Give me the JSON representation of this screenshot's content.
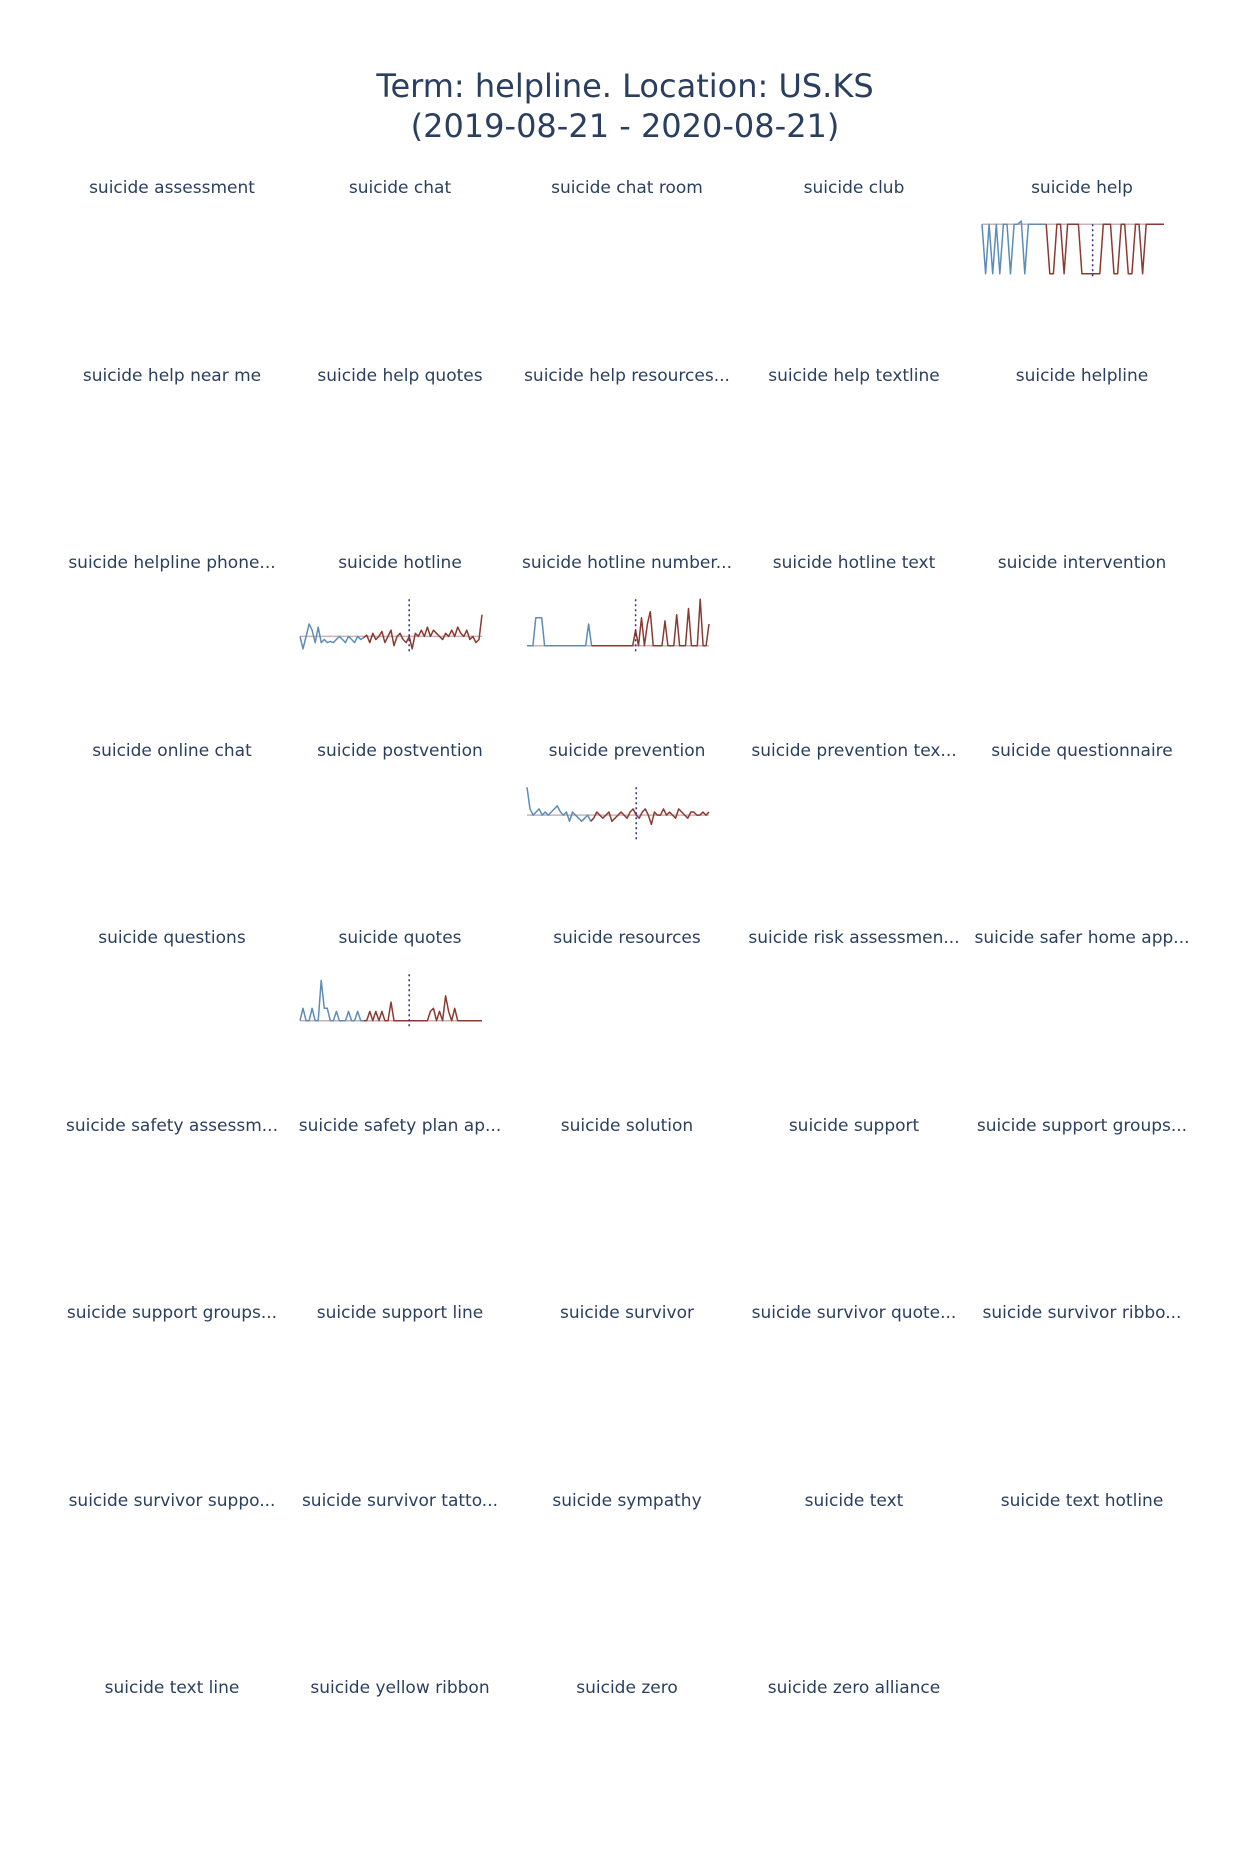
{
  "title": {
    "line1": "Term: helpline. Location: US.KS",
    "line2": "(2019-08-21 - 2020-08-21)"
  },
  "colors": {
    "before": "#5b8db8",
    "after": "#8b3a32",
    "marker": "#2a2a9a",
    "baseline": "#c9b3b3"
  },
  "chart_data": {
    "type": "line",
    "layout": "small-multiples",
    "date_range": [
      "2019-08-21",
      "2020-08-21"
    ],
    "panels": [
      {
        "title": "suicide assessment",
        "series": []
      },
      {
        "title": "suicide chat",
        "series": []
      },
      {
        "title": "suicide chat room",
        "series": []
      },
      {
        "title": "suicide club",
        "series": []
      },
      {
        "title": "suicide help",
        "split": 0.6,
        "ylim": [
          0,
          1
        ],
        "series": [
          0.9,
          0.1,
          0.9,
          0.1,
          0.9,
          0.1,
          0.9,
          0.9,
          0.1,
          0.9,
          0.9,
          0.95,
          0.1,
          0.9,
          0.9,
          0.9,
          0.9,
          0.9,
          0.9,
          0.1,
          0.1,
          0.9,
          0.9,
          0.1,
          0.9,
          0.9,
          0.9,
          0.9,
          0.1,
          0.1,
          0.1,
          0.1,
          0.1,
          0.1,
          0.9,
          0.9,
          0.9,
          0.1,
          0.1,
          0.9,
          0.9,
          0.1,
          0.1,
          0.9,
          0.9,
          0.1,
          0.9,
          0.9,
          0.9,
          0.9,
          0.9,
          0.9
        ]
      },
      {
        "title": "suicide help near me",
        "series": []
      },
      {
        "title": "suicide help quotes",
        "series": []
      },
      {
        "title": "suicide help resources...",
        "series": []
      },
      {
        "title": "suicide help textline",
        "series": []
      },
      {
        "title": "suicide helpline",
        "series": []
      },
      {
        "title": "suicide helpline phone...",
        "series": []
      },
      {
        "title": "suicide hotline",
        "split": 0.6,
        "ylim": [
          0,
          1
        ],
        "series": [
          0.3,
          0.1,
          0.3,
          0.5,
          0.4,
          0.2,
          0.45,
          0.2,
          0.25,
          0.2,
          0.22,
          0.2,
          0.25,
          0.3,
          0.25,
          0.2,
          0.3,
          0.25,
          0.2,
          0.3,
          0.25,
          0.28,
          0.32,
          0.2,
          0.35,
          0.25,
          0.3,
          0.38,
          0.2,
          0.3,
          0.4,
          0.15,
          0.3,
          0.35,
          0.25,
          0.2,
          0.3,
          0.1,
          0.35,
          0.3,
          0.4,
          0.3,
          0.45,
          0.3,
          0.4,
          0.35,
          0.3,
          0.25,
          0.35,
          0.3,
          0.4,
          0.3,
          0.45,
          0.35,
          0.3,
          0.4,
          0.25,
          0.3,
          0.2,
          0.25,
          0.65
        ]
      },
      {
        "title": "suicide hotline number...",
        "split": 0.6,
        "ylim": [
          0,
          1
        ],
        "series": [
          0.15,
          0.15,
          0.15,
          0.6,
          0.6,
          0.6,
          0.15,
          0.15,
          0.15,
          0.15,
          0.15,
          0.15,
          0.15,
          0.15,
          0.15,
          0.15,
          0.15,
          0.15,
          0.15,
          0.15,
          0.15,
          0.5,
          0.15,
          0.15,
          0.15,
          0.15,
          0.15,
          0.15,
          0.15,
          0.15,
          0.15,
          0.15,
          0.15,
          0.15,
          0.15,
          0.15,
          0.15,
          0.4,
          0.15,
          0.6,
          0.15,
          0.5,
          0.7,
          0.15,
          0.15,
          0.15,
          0.15,
          0.55,
          0.15,
          0.15,
          0.15,
          0.65,
          0.15,
          0.15,
          0.15,
          0.75,
          0.15,
          0.15,
          0.15,
          0.9,
          0.15,
          0.15,
          0.5
        ]
      },
      {
        "title": "suicide hotline text",
        "series": []
      },
      {
        "title": "suicide intervention",
        "series": []
      },
      {
        "title": "suicide online chat",
        "series": []
      },
      {
        "title": "suicide postvention",
        "series": []
      },
      {
        "title": "suicide prevention",
        "split": 0.6,
        "ylim": [
          0,
          1
        ],
        "series": [
          0.9,
          0.55,
          0.45,
          0.5,
          0.55,
          0.45,
          0.5,
          0.45,
          0.5,
          0.55,
          0.6,
          0.5,
          0.45,
          0.5,
          0.35,
          0.5,
          0.45,
          0.4,
          0.35,
          0.4,
          0.45,
          0.35,
          0.4,
          0.5,
          0.45,
          0.4,
          0.45,
          0.5,
          0.35,
          0.4,
          0.45,
          0.5,
          0.45,
          0.4,
          0.5,
          0.55,
          0.45,
          0.4,
          0.5,
          0.55,
          0.45,
          0.3,
          0.5,
          0.45,
          0.45,
          0.55,
          0.45,
          0.5,
          0.45,
          0.4,
          0.55,
          0.5,
          0.45,
          0.4,
          0.5,
          0.5,
          0.45,
          0.45,
          0.5,
          0.45,
          0.5
        ]
      },
      {
        "title": "suicide prevention tex...",
        "series": []
      },
      {
        "title": "suicide questionnaire",
        "series": []
      },
      {
        "title": "suicide questions",
        "series": []
      },
      {
        "title": "suicide quotes",
        "split": 0.6,
        "ylim": [
          0,
          1
        ],
        "series": [
          0.15,
          0.35,
          0.15,
          0.15,
          0.35,
          0.15,
          0.15,
          0.8,
          0.35,
          0.35,
          0.15,
          0.15,
          0.3,
          0.15,
          0.15,
          0.15,
          0.3,
          0.15,
          0.15,
          0.3,
          0.15,
          0.15,
          0.15,
          0.3,
          0.15,
          0.3,
          0.15,
          0.3,
          0.15,
          0.15,
          0.45,
          0.15,
          0.15,
          0.15,
          0.15,
          0.15,
          0.15,
          0.15,
          0.15,
          0.15,
          0.15,
          0.15,
          0.15,
          0.3,
          0.35,
          0.15,
          0.3,
          0.15,
          0.55,
          0.3,
          0.15,
          0.35,
          0.15,
          0.15,
          0.15,
          0.15,
          0.15,
          0.15,
          0.15,
          0.15,
          0.15
        ]
      },
      {
        "title": "suicide resources",
        "series": []
      },
      {
        "title": "suicide risk assessmen...",
        "series": []
      },
      {
        "title": "suicide safer home app...",
        "series": []
      },
      {
        "title": "suicide safety assessm...",
        "series": []
      },
      {
        "title": "suicide safety plan ap...",
        "series": []
      },
      {
        "title": "suicide solution",
        "series": []
      },
      {
        "title": "suicide support",
        "series": []
      },
      {
        "title": "suicide support groups...",
        "series": []
      },
      {
        "title": "suicide support groups...",
        "series": []
      },
      {
        "title": "suicide support line",
        "series": []
      },
      {
        "title": "suicide survivor",
        "series": []
      },
      {
        "title": "suicide survivor quote...",
        "series": []
      },
      {
        "title": "suicide survivor ribbo...",
        "series": []
      },
      {
        "title": "suicide survivor suppo...",
        "series": []
      },
      {
        "title": "suicide survivor tatto...",
        "series": []
      },
      {
        "title": "suicide sympathy",
        "series": []
      },
      {
        "title": "suicide text",
        "series": []
      },
      {
        "title": "suicide text hotline",
        "series": []
      },
      {
        "title": "suicide text line",
        "series": []
      },
      {
        "title": "suicide yellow ribbon",
        "series": []
      },
      {
        "title": "suicide zero",
        "series": []
      },
      {
        "title": "suicide zero alliance",
        "series": []
      }
    ]
  }
}
